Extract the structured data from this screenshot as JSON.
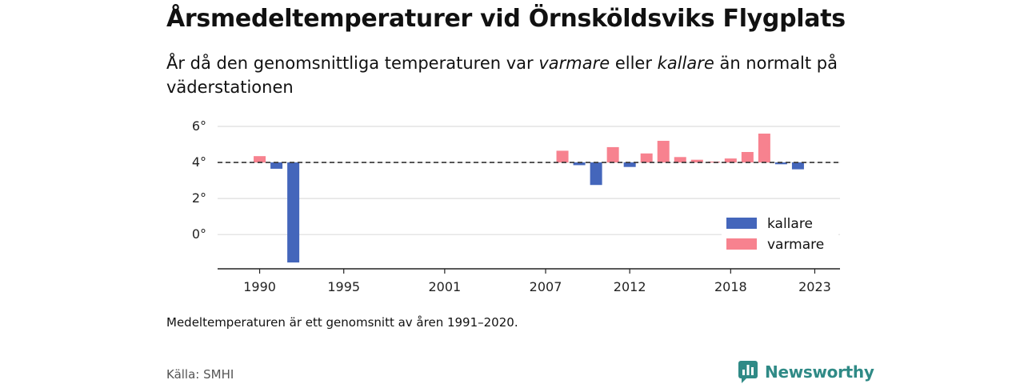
{
  "header": {
    "title": "Årsmedeltemperaturer vid Örnsköldsviks Flygplats",
    "subtitle_pre": "År då den genomsnittliga temperaturen var ",
    "subtitle_em1": "varmare",
    "subtitle_mid": " eller ",
    "subtitle_em2": "kallare",
    "subtitle_post": " än normalt på väderstationen"
  },
  "chart_data": {
    "type": "bar",
    "y_tick_labels": [
      "0°",
      "2°",
      "4°",
      "6°"
    ],
    "y_ticks": [
      0,
      2,
      4,
      6
    ],
    "ylim": [
      -1.9,
      6
    ],
    "x_tick_labels": [
      "1990",
      "1995",
      "2001",
      "2007",
      "2012",
      "2018",
      "2023"
    ],
    "x_ticks": [
      1990,
      1995,
      2001,
      2007,
      2012,
      2018,
      2023
    ],
    "xlim": [
      1987.5,
      2024.5
    ],
    "baseline": 4.0,
    "legend_position": "bottom-right",
    "series": [
      {
        "name": "kallare",
        "color": "#4466bb"
      },
      {
        "name": "varmare",
        "color": "#f7828f"
      }
    ],
    "years": [
      1990,
      1991,
      1992,
      2008,
      2009,
      2010,
      2011,
      2012,
      2013,
      2014,
      2015,
      2016,
      2017,
      2018,
      2019,
      2020,
      2021,
      2022
    ],
    "values": [
      4.35,
      3.65,
      -1.55,
      4.65,
      3.85,
      2.75,
      4.85,
      3.75,
      4.5,
      5.2,
      4.3,
      4.15,
      4.05,
      4.22,
      4.58,
      5.6,
      3.9,
      3.62
    ]
  },
  "footer": {
    "note": "Medeltemperaturen är ett genomsnitt av åren 1991–2020.",
    "source": "Källa: SMHI",
    "brand": "Newsworthy",
    "brand_color": "#2f8a86",
    "brand_icon": "bar-chart-speech-bubble-icon"
  }
}
